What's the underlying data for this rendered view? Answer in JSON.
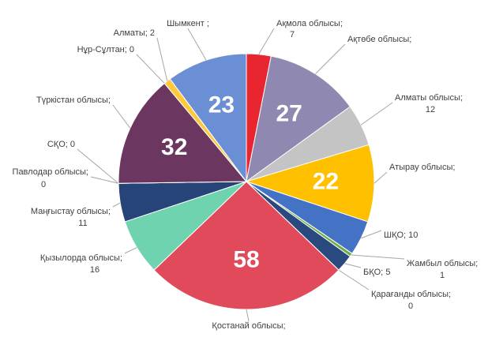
{
  "chart_data": {
    "type": "pie",
    "categories": [
      "Ақмола облысы;",
      "Ақтөбе облысы;",
      "Алматы облысы;",
      "Атырау облысы;",
      "ШҚО;",
      "Жамбыл облысы;",
      "БҚО;",
      "Қарағанды облысы;",
      "Қостанай облысы;",
      "Қызылорда облысы;",
      "Маңғыстау облысы;",
      "Павлодар облысы;",
      "СҚО;",
      "Түркістан облысы;",
      "Нұр-Сұлтан;",
      "Алматы;",
      "Шымкент ;"
    ],
    "values": [
      7,
      27,
      12,
      22,
      10,
      1,
      5,
      0,
      58,
      16,
      11,
      0,
      0,
      32,
      0,
      2,
      23
    ],
    "colors": [
      "#e8262f",
      "#8f88b0",
      "#c4c4c4",
      "#ffc000",
      "#4472c4",
      "#70ad47",
      "#2a4a7f",
      "#a5a5a5",
      "#e04a5a",
      "#6fd3b0",
      "#264478",
      "#9e480e",
      "#636363",
      "#6b3660",
      "#997300",
      "#ffc83d",
      "#6a8fd4"
    ]
  }
}
